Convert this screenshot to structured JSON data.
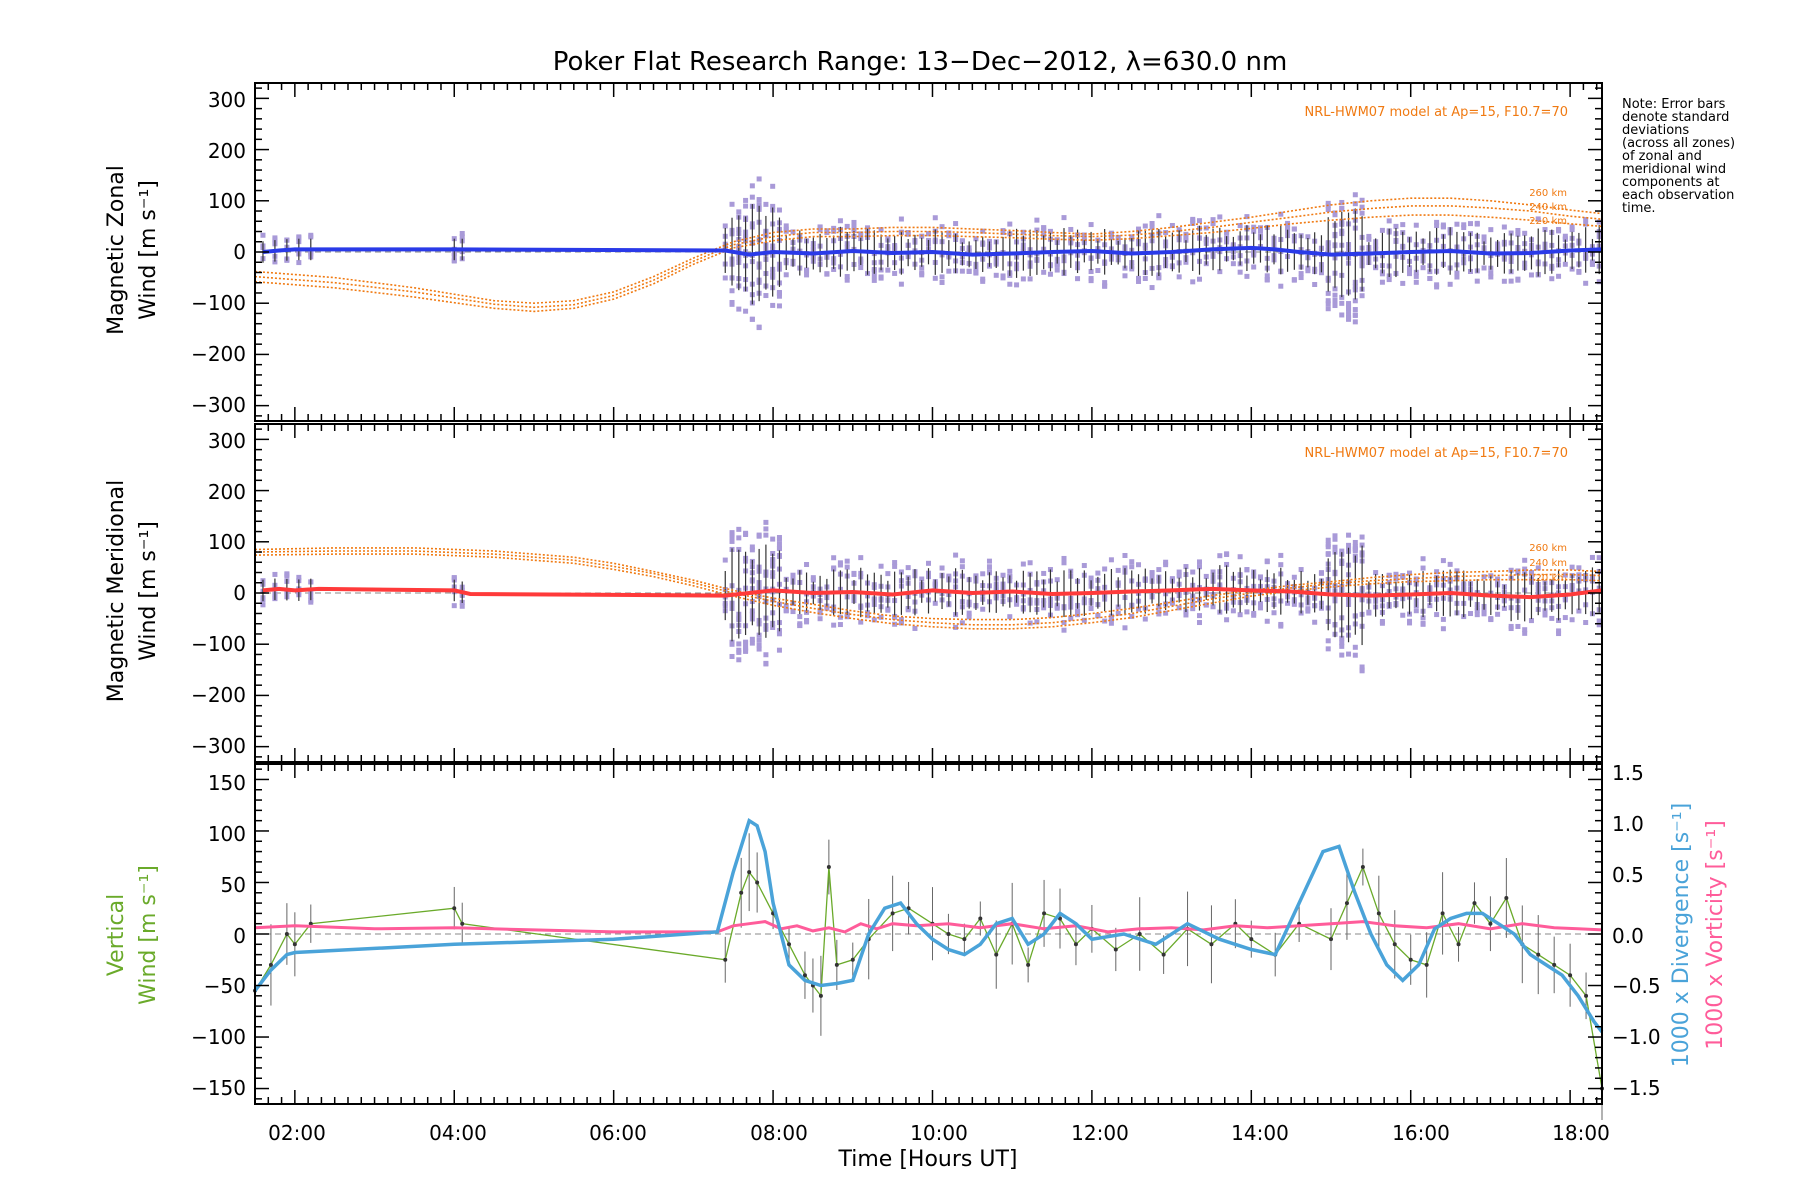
{
  "figure": {
    "title": "Poker Flat Research Range: 13−Dec−2012, λ=630.0 nm",
    "note_lines": [
      "Note: Error bars",
      "denote standard",
      "deviations",
      "(across all zones)",
      "of zonal and",
      "meridional wind",
      "components at",
      "each observation",
      "time."
    ],
    "x_label": "Time [Hours UT]",
    "x_ticks": [
      "02:00",
      "04:00",
      "06:00",
      "08:00",
      "10:00",
      "12:00",
      "14:00",
      "16:00",
      "18:00"
    ],
    "colors": {
      "zonal": "#2a3ae8",
      "meridional": "#ff3a3a",
      "model": "#f07a12",
      "scatter": "#a99ad8",
      "vertical": "#6aaa2a",
      "divergence": "#4aa3d9",
      "vorticity": "#ff5c9a",
      "errorbar": "#333333",
      "zero_line": "#888888"
    }
  },
  "chart_data": [
    {
      "type": "line",
      "panel": "zonal",
      "ylabel_lines": [
        "Magnetic Zonal",
        "Wind [m s⁻¹]"
      ],
      "ylim": [
        -330,
        330
      ],
      "y_ticks": [
        "300",
        "200",
        "100",
        "0",
        "−100",
        "−200",
        "−300"
      ],
      "xlim": [
        1.5,
        18.4
      ],
      "model_note": "NRL-HWM07 model at Ap=15, F10.7=70",
      "model_labels": [
        "260 km",
        "240 km",
        "220 km"
      ],
      "series": [
        {
          "kind": "wind",
          "x": [
            1.6,
            1.8,
            2.0,
            2.3,
            4.0,
            7.4,
            7.7,
            8.0,
            8.5,
            9.0,
            9.5,
            10.0,
            10.5,
            11.0,
            11.5,
            12.0,
            12.5,
            13.0,
            13.5,
            14.0,
            14.3,
            14.6,
            15.0,
            15.5,
            16.0,
            16.5,
            17.0,
            17.5,
            18.0,
            18.4
          ],
          "y": [
            0,
            3,
            5,
            5,
            5,
            3,
            -5,
            0,
            -3,
            2,
            -2,
            0,
            -5,
            -3,
            0,
            2,
            -3,
            0,
            5,
            8,
            5,
            0,
            -5,
            -3,
            0,
            2,
            -3,
            -2,
            3,
            5
          ]
        },
        {
          "kind": "model",
          "name": "260 km",
          "x": [
            1.5,
            2.5,
            3.5,
            4.5,
            5.0,
            5.5,
            6.0,
            6.5,
            7.0,
            7.5,
            8.0,
            8.5,
            9.0,
            9.5,
            10.0,
            10.5,
            11.0,
            11.5,
            12.0,
            12.5,
            13.0,
            13.5,
            14.0,
            14.5,
            15.0,
            15.5,
            16.0,
            16.5,
            17.0,
            17.5,
            18.0,
            18.4
          ],
          "y": [
            -38,
            -50,
            -70,
            -95,
            -100,
            -95,
            -78,
            -48,
            -12,
            20,
            38,
            45,
            45,
            48,
            48,
            45,
            42,
            38,
            35,
            40,
            48,
            58,
            68,
            80,
            92,
            100,
            105,
            105,
            100,
            92,
            82,
            75
          ]
        },
        {
          "kind": "model",
          "name": "240 km",
          "x": [
            1.5,
            2.5,
            3.5,
            4.5,
            5.0,
            5.5,
            6.0,
            6.5,
            7.0,
            7.5,
            8.0,
            8.5,
            9.0,
            9.5,
            10.0,
            10.5,
            11.0,
            11.5,
            12.0,
            12.5,
            13.0,
            13.5,
            14.0,
            14.5,
            15.0,
            15.5,
            16.0,
            16.5,
            17.0,
            17.5,
            18.0,
            18.4
          ],
          "y": [
            -48,
            -60,
            -78,
            -102,
            -108,
            -103,
            -85,
            -55,
            -18,
            14,
            30,
            38,
            38,
            40,
            40,
            38,
            35,
            32,
            30,
            33,
            40,
            48,
            58,
            68,
            78,
            85,
            90,
            90,
            86,
            80,
            70,
            64
          ]
        },
        {
          "kind": "model",
          "name": "220 km",
          "x": [
            1.5,
            2.5,
            3.5,
            4.5,
            5.0,
            5.5,
            6.0,
            6.5,
            7.0,
            7.5,
            8.0,
            8.5,
            9.0,
            9.5,
            10.0,
            10.5,
            11.0,
            11.5,
            12.0,
            12.5,
            13.0,
            13.5,
            14.0,
            14.5,
            15.0,
            15.5,
            16.0,
            16.5,
            17.0,
            17.5,
            18.0,
            18.4
          ],
          "y": [
            -58,
            -70,
            -88,
            -110,
            -116,
            -110,
            -92,
            -62,
            -24,
            8,
            22,
            30,
            30,
            32,
            32,
            30,
            28,
            25,
            23,
            26,
            32,
            38,
            46,
            55,
            62,
            68,
            72,
            72,
            68,
            62,
            55,
            50
          ]
        }
      ]
    },
    {
      "type": "line",
      "panel": "meridional",
      "ylabel_lines": [
        "Magnetic Meridional",
        "Wind [m s⁻¹]"
      ],
      "ylim": [
        -330,
        330
      ],
      "y_ticks": [
        "300",
        "200",
        "100",
        "0",
        "−100",
        "−200",
        "−300"
      ],
      "xlim": [
        1.5,
        18.4
      ],
      "model_note": "NRL-HWM07 model at Ap=15, F10.7=70",
      "model_labels": [
        "260 km",
        "240 km",
        "220 km"
      ],
      "series": [
        {
          "kind": "wind",
          "x": [
            1.6,
            1.8,
            2.0,
            2.3,
            4.0,
            4.2,
            7.4,
            7.7,
            8.0,
            8.5,
            9.0,
            9.5,
            10.0,
            10.5,
            11.0,
            11.5,
            12.0,
            12.5,
            13.0,
            13.5,
            14.0,
            14.5,
            15.0,
            15.5,
            16.0,
            16.5,
            17.0,
            17.5,
            18.0,
            18.4
          ],
          "y": [
            5,
            8,
            5,
            8,
            5,
            -2,
            -5,
            0,
            5,
            0,
            2,
            -3,
            5,
            0,
            3,
            -2,
            0,
            3,
            5,
            8,
            5,
            3,
            -3,
            -5,
            -3,
            0,
            -5,
            -8,
            -3,
            5
          ]
        },
        {
          "kind": "model",
          "name": "260 km",
          "x": [
            1.5,
            2.5,
            3.5,
            4.5,
            5.5,
            6.0,
            6.5,
            7.0,
            7.5,
            8.0,
            8.5,
            9.0,
            9.5,
            10.0,
            10.5,
            11.0,
            11.5,
            12.0,
            12.5,
            13.0,
            13.5,
            14.0,
            14.5,
            15.0,
            15.5,
            16.0,
            16.5,
            17.0,
            17.5,
            18.0,
            18.4
          ],
          "y": [
            85,
            88,
            88,
            82,
            70,
            58,
            42,
            25,
            5,
            -10,
            -22,
            -35,
            -45,
            -50,
            -52,
            -52,
            -48,
            -40,
            -30,
            -18,
            -5,
            5,
            15,
            22,
            30,
            36,
            40,
            42,
            45,
            45,
            42
          ]
        },
        {
          "kind": "model",
          "name": "240 km",
          "x": [
            1.5,
            2.5,
            3.5,
            4.5,
            5.5,
            6.0,
            6.5,
            7.0,
            7.5,
            8.0,
            8.5,
            9.0,
            9.5,
            10.0,
            10.5,
            11.0,
            11.5,
            12.0,
            12.5,
            13.0,
            13.5,
            14.0,
            14.5,
            15.0,
            15.5,
            16.0,
            16.5,
            17.0,
            17.5,
            18.0,
            18.4
          ],
          "y": [
            80,
            82,
            82,
            76,
            64,
            52,
            38,
            20,
            0,
            -16,
            -30,
            -42,
            -52,
            -58,
            -62,
            -62,
            -58,
            -50,
            -40,
            -26,
            -12,
            0,
            10,
            18,
            24,
            28,
            32,
            34,
            36,
            36,
            34
          ]
        },
        {
          "kind": "model",
          "name": "220 km",
          "x": [
            1.5,
            2.5,
            3.5,
            4.5,
            5.5,
            6.0,
            6.5,
            7.0,
            7.5,
            8.0,
            8.5,
            9.0,
            9.5,
            10.0,
            10.5,
            11.0,
            11.5,
            12.0,
            12.5,
            13.0,
            13.5,
            14.0,
            14.5,
            15.0,
            15.5,
            16.0,
            16.5,
            17.0,
            17.5,
            18.0,
            18.4
          ],
          "y": [
            74,
            76,
            76,
            70,
            58,
            46,
            32,
            14,
            -6,
            -24,
            -38,
            -50,
            -60,
            -66,
            -70,
            -70,
            -66,
            -58,
            -48,
            -34,
            -20,
            -6,
            4,
            12,
            18,
            22,
            24,
            26,
            26,
            26,
            24
          ]
        }
      ]
    },
    {
      "type": "line",
      "panel": "vertical",
      "ylabel_lines": [
        "Vertical",
        "Wind [m s⁻¹]"
      ],
      "ylim": [
        -165,
        165
      ],
      "y_ticks": [
        "150",
        "100",
        "50",
        "0",
        "−50",
        "−100",
        "−150"
      ],
      "y2label_lines": [
        "1000 x Divergence [s⁻¹]",
        "1000 x Vorticity [s⁻¹]"
      ],
      "y2lim": [
        -1.65,
        1.65
      ],
      "y2_ticks": [
        "1.5",
        "1.0",
        "0.5",
        "0.0",
        "−0.5",
        "−1.0",
        "−1.5"
      ],
      "xlim": [
        1.5,
        18.4
      ],
      "series": [
        {
          "kind": "vertical",
          "x": [
            1.5,
            1.7,
            1.9,
            2.0,
            2.2,
            4.0,
            4.1,
            7.4,
            7.6,
            7.7,
            7.8,
            8.0,
            8.2,
            8.4,
            8.5,
            8.6,
            8.7,
            8.8,
            9.0,
            9.2,
            9.5,
            9.7,
            10.0,
            10.2,
            10.4,
            10.6,
            10.8,
            11.0,
            11.2,
            11.4,
            11.6,
            11.8,
            12.0,
            12.3,
            12.6,
            12.9,
            13.2,
            13.5,
            13.8,
            14.0,
            14.3,
            14.6,
            15.0,
            15.2,
            15.4,
            15.6,
            15.8,
            16.0,
            16.2,
            16.4,
            16.6,
            16.8,
            17.0,
            17.2,
            17.4,
            17.6,
            17.8,
            18.0,
            18.2,
            18.4
          ],
          "y": [
            -55,
            -30,
            0,
            -10,
            10,
            25,
            10,
            -25,
            40,
            60,
            50,
            20,
            -10,
            -40,
            -50,
            -60,
            65,
            -30,
            -25,
            -5,
            20,
            25,
            10,
            0,
            -5,
            15,
            -20,
            10,
            -30,
            20,
            15,
            -10,
            5,
            -15,
            0,
            -20,
            5,
            -10,
            10,
            -5,
            -20,
            10,
            -5,
            30,
            65,
            20,
            -10,
            -25,
            -30,
            20,
            -10,
            30,
            10,
            35,
            -10,
            -20,
            -30,
            -40,
            -60,
            -150
          ]
        },
        {
          "kind": "divergence",
          "x": [
            1.5,
            1.7,
            1.9,
            2.0,
            4.0,
            6.0,
            7.3,
            7.5,
            7.7,
            7.8,
            7.9,
            8.0,
            8.2,
            8.4,
            8.6,
            8.8,
            9.0,
            9.2,
            9.4,
            9.6,
            9.8,
            10.0,
            10.2,
            10.4,
            10.6,
            10.8,
            11.0,
            11.2,
            11.4,
            11.6,
            11.8,
            12.0,
            12.4,
            12.8,
            13.2,
            13.6,
            14.0,
            14.3,
            14.6,
            14.9,
            15.1,
            15.3,
            15.5,
            15.7,
            15.9,
            16.1,
            16.3,
            16.5,
            16.7,
            16.9,
            17.1,
            17.3,
            17.5,
            17.7,
            17.9,
            18.1,
            18.3,
            18.4
          ],
          "y": [
            -0.55,
            -0.35,
            -0.2,
            -0.18,
            -0.1,
            -0.05,
            0.02,
            0.6,
            1.1,
            1.05,
            0.8,
            0.3,
            -0.3,
            -0.45,
            -0.5,
            -0.48,
            -0.45,
            0.0,
            0.25,
            0.3,
            0.1,
            -0.05,
            -0.15,
            -0.2,
            -0.1,
            0.1,
            0.15,
            -0.1,
            0.0,
            0.2,
            0.1,
            -0.05,
            0.0,
            -0.1,
            0.1,
            -0.05,
            -0.15,
            -0.2,
            0.3,
            0.8,
            0.85,
            0.4,
            0.0,
            -0.3,
            -0.45,
            -0.3,
            0.05,
            0.15,
            0.2,
            0.2,
            0.1,
            0.0,
            -0.2,
            -0.3,
            -0.4,
            -0.6,
            -0.85,
            -0.95
          ]
        },
        {
          "kind": "vorticity",
          "x": [
            1.5,
            2.0,
            3.0,
            4.0,
            5.0,
            6.0,
            7.3,
            7.5,
            7.7,
            7.9,
            8.1,
            8.3,
            8.5,
            8.7,
            8.9,
            9.1,
            9.3,
            9.5,
            9.8,
            10.2,
            10.6,
            11.0,
            11.4,
            11.8,
            12.2,
            12.6,
            13.0,
            13.4,
            13.8,
            14.2,
            14.6,
            15.0,
            15.4,
            15.8,
            16.2,
            16.6,
            17.0,
            17.4,
            17.8,
            18.1,
            18.4
          ],
          "y": [
            0.06,
            0.08,
            0.05,
            0.06,
            0.04,
            0.02,
            0.02,
            0.08,
            0.1,
            0.12,
            0.05,
            0.08,
            0.03,
            0.06,
            0.02,
            0.1,
            0.05,
            0.1,
            0.08,
            0.1,
            0.06,
            0.1,
            0.05,
            0.08,
            0.02,
            0.05,
            0.06,
            0.04,
            0.08,
            0.06,
            0.08,
            0.1,
            0.12,
            0.08,
            0.06,
            0.1,
            0.05,
            0.1,
            0.06,
            0.05,
            0.04
          ]
        }
      ]
    }
  ]
}
